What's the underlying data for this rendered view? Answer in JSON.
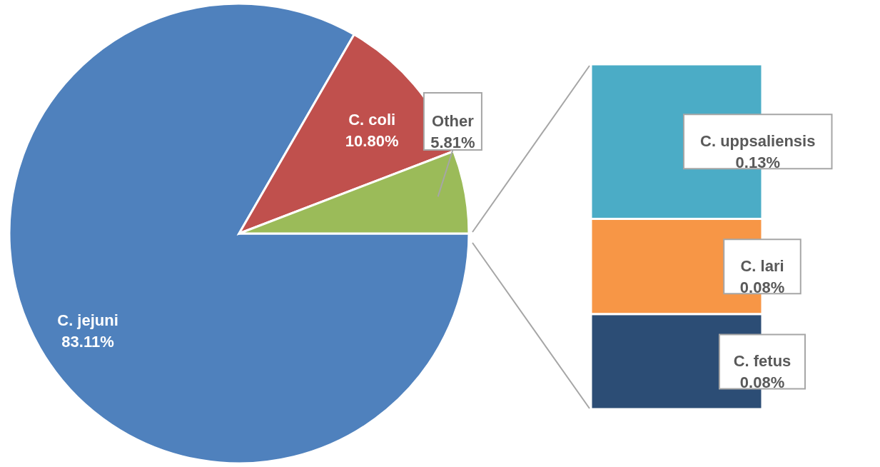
{
  "chart_data": [
    {
      "type": "pie",
      "categories": [
        "C. jejuni",
        "C. coli",
        "Other"
      ],
      "values": [
        83.11,
        10.8,
        5.81
      ],
      "colors": [
        "#4f81bd",
        "#c0504d",
        "#9bbb59"
      ],
      "value_labels": [
        "83.11%",
        "10.80%",
        "5.81%"
      ]
    },
    {
      "type": "bar",
      "stacked": true,
      "categories": [
        null
      ],
      "series": [
        {
          "name": "C. fetus",
          "color": "#2c4d75",
          "values": [
            0.08
          ],
          "value_labels": [
            "0.08%"
          ]
        },
        {
          "name": "C. lari",
          "color": "#f79646",
          "values": [
            0.08
          ],
          "value_labels": [
            "0.08%"
          ]
        },
        {
          "name": "C. uppsaliensis",
          "color": "#4bacc6",
          "values": [
            0.13
          ],
          "value_labels": [
            "0.13%"
          ]
        }
      ]
    }
  ]
}
